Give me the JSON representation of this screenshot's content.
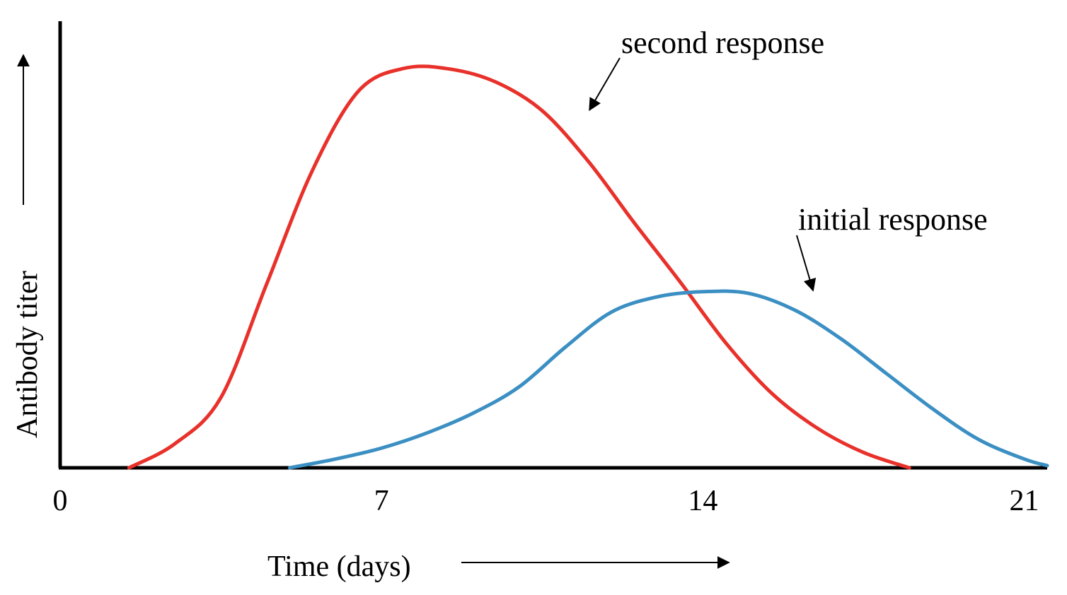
{
  "chart_data": {
    "type": "line",
    "title": "",
    "xlabel": "Time (days)",
    "ylabel": "Antibody titer",
    "xlim": [
      0,
      21.5
    ],
    "ylim": [
      0,
      10
    ],
    "x_ticks": [
      0,
      7,
      14,
      21
    ],
    "x_tick_labels": [
      "0",
      "7",
      "14",
      "21"
    ],
    "grid": false,
    "series": [
      {
        "name": "second response",
        "color": "#e8312a",
        "points": [
          {
            "x": 1.5,
            "y": 0
          },
          {
            "x": 2.5,
            "y": 0.55
          },
          {
            "x": 3.5,
            "y": 1.6
          },
          {
            "x": 4.5,
            "y": 4.2
          },
          {
            "x": 5.5,
            "y": 6.8
          },
          {
            "x": 6.5,
            "y": 8.6
          },
          {
            "x": 7.5,
            "y": 9.12
          },
          {
            "x": 8.5,
            "y": 9.1
          },
          {
            "x": 9.5,
            "y": 8.8
          },
          {
            "x": 10.5,
            "y": 8.15
          },
          {
            "x": 11.5,
            "y": 7.0
          },
          {
            "x": 12.5,
            "y": 5.6
          },
          {
            "x": 13.5,
            "y": 4.25
          },
          {
            "x": 14.5,
            "y": 2.85
          },
          {
            "x": 15.5,
            "y": 1.7
          },
          {
            "x": 16.5,
            "y": 0.9
          },
          {
            "x": 17.5,
            "y": 0.35
          },
          {
            "x": 18.5,
            "y": 0
          }
        ]
      },
      {
        "name": "initial response",
        "color": "#3b8fc3",
        "points": [
          {
            "x": 5.0,
            "y": 0
          },
          {
            "x": 6.0,
            "y": 0.2
          },
          {
            "x": 7.0,
            "y": 0.45
          },
          {
            "x": 8.0,
            "y": 0.8
          },
          {
            "x": 9.0,
            "y": 1.25
          },
          {
            "x": 10.0,
            "y": 1.85
          },
          {
            "x": 11.0,
            "y": 2.75
          },
          {
            "x": 12.0,
            "y": 3.55
          },
          {
            "x": 13.0,
            "y": 3.9
          },
          {
            "x": 14.0,
            "y": 4.02
          },
          {
            "x": 15.0,
            "y": 3.98
          },
          {
            "x": 16.0,
            "y": 3.6
          },
          {
            "x": 17.0,
            "y": 2.95
          },
          {
            "x": 18.0,
            "y": 2.15
          },
          {
            "x": 19.0,
            "y": 1.35
          },
          {
            "x": 20.0,
            "y": 0.65
          },
          {
            "x": 21.0,
            "y": 0.2
          },
          {
            "x": 21.5,
            "y": 0.05
          }
        ]
      }
    ],
    "annotations": [
      {
        "text": "second response",
        "points_to": {
          "x": 11.5,
          "y": 8.2
        }
      },
      {
        "text": "initial response",
        "points_to": {
          "x": 16.4,
          "y": 4.0
        }
      }
    ]
  }
}
